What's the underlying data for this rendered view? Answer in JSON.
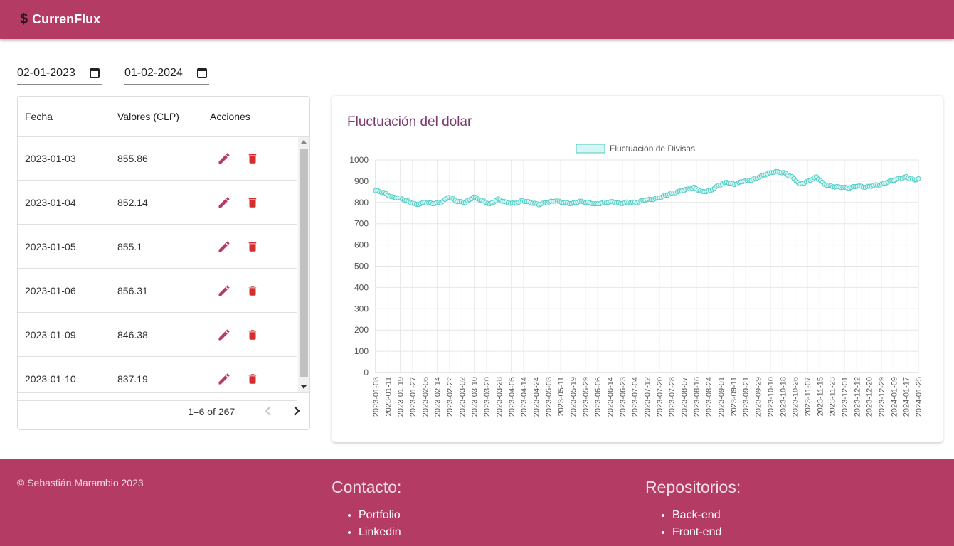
{
  "app": {
    "title": "CurrenFlux",
    "logo_icon": "dollar-icon"
  },
  "filters": {
    "start_date": "02-01-2023",
    "end_date": "01-02-2024"
  },
  "table": {
    "headers": {
      "date": "Fecha",
      "value": "Valores (CLP)",
      "actions": "Acciones"
    },
    "rows": [
      {
        "date": "2023-01-03",
        "value": "855.86"
      },
      {
        "date": "2023-01-04",
        "value": "852.14"
      },
      {
        "date": "2023-01-05",
        "value": "855.1"
      },
      {
        "date": "2023-01-06",
        "value": "856.31"
      },
      {
        "date": "2023-01-09",
        "value": "846.38"
      },
      {
        "date": "2023-01-10",
        "value": "837.19"
      }
    ],
    "pagination": {
      "range": "1–6 of 267"
    }
  },
  "colors": {
    "primary": "#b43c64",
    "edit": "#b43c64",
    "delete": "#d32f2f",
    "series_line": "#4ecdc4",
    "series_fill": "#d7f3f2",
    "chart_title": "#7b3a70"
  },
  "chart_data": {
    "type": "line",
    "title": "Fluctuación del dolar",
    "legend": "Fluctuación de Divisas",
    "legend_position": "top",
    "ylim": [
      0,
      1000
    ],
    "yticks": [
      0,
      100,
      200,
      300,
      400,
      500,
      600,
      700,
      800,
      900,
      1000
    ],
    "grid": true,
    "x_tick_labels": [
      "2023-01-03",
      "2023-01-11",
      "2023-01-19",
      "2023-01-27",
      "2023-02-06",
      "2023-02-14",
      "2023-02-22",
      "2023-03-02",
      "2023-03-10",
      "2023-03-20",
      "2023-03-28",
      "2023-04-05",
      "2023-04-14",
      "2023-04-24",
      "2023-05-03",
      "2023-05-11",
      "2023-05-19",
      "2023-05-29",
      "2023-06-06",
      "2023-06-14",
      "2023-06-23",
      "2023-07-04",
      "2023-07-12",
      "2023-07-20",
      "2023-07-28",
      "2023-08-07",
      "2023-08-16",
      "2023-08-24",
      "2023-09-01",
      "2023-09-11",
      "2023-09-21",
      "2023-09-29",
      "2023-10-10",
      "2023-10-18",
      "2023-10-26",
      "2023-11-07",
      "2023-11-15",
      "2023-11-23",
      "2023-12-01",
      "2023-12-12",
      "2023-12-20",
      "2023-12-29",
      "2024-01-09",
      "2024-01-17",
      "2024-01-25"
    ],
    "anchors": [
      [
        0,
        856
      ],
      [
        4,
        846
      ],
      [
        8,
        825
      ],
      [
        12,
        820
      ],
      [
        16,
        805
      ],
      [
        20,
        790
      ],
      [
        24,
        800
      ],
      [
        28,
        795
      ],
      [
        32,
        800
      ],
      [
        36,
        825
      ],
      [
        40,
        805
      ],
      [
        44,
        800
      ],
      [
        48,
        825
      ],
      [
        52,
        810
      ],
      [
        56,
        792
      ],
      [
        60,
        815
      ],
      [
        64,
        800
      ],
      [
        68,
        795
      ],
      [
        72,
        808
      ],
      [
        76,
        800
      ],
      [
        80,
        790
      ],
      [
        84,
        800
      ],
      [
        88,
        808
      ],
      [
        92,
        800
      ],
      [
        96,
        795
      ],
      [
        100,
        805
      ],
      [
        104,
        800
      ],
      [
        108,
        792
      ],
      [
        112,
        800
      ],
      [
        116,
        803
      ],
      [
        120,
        795
      ],
      [
        124,
        802
      ],
      [
        128,
        800
      ],
      [
        132,
        812
      ],
      [
        136,
        815
      ],
      [
        140,
        825
      ],
      [
        144,
        840
      ],
      [
        148,
        850
      ],
      [
        152,
        860
      ],
      [
        156,
        870
      ],
      [
        160,
        850
      ],
      [
        164,
        855
      ],
      [
        168,
        880
      ],
      [
        172,
        895
      ],
      [
        176,
        885
      ],
      [
        180,
        900
      ],
      [
        184,
        905
      ],
      [
        188,
        920
      ],
      [
        192,
        935
      ],
      [
        196,
        945
      ],
      [
        200,
        940
      ],
      [
        204,
        920
      ],
      [
        208,
        885
      ],
      [
        212,
        900
      ],
      [
        216,
        920
      ],
      [
        220,
        885
      ],
      [
        224,
        875
      ],
      [
        228,
        872
      ],
      [
        232,
        868
      ],
      [
        236,
        878
      ],
      [
        240,
        872
      ],
      [
        244,
        880
      ],
      [
        248,
        885
      ],
      [
        252,
        900
      ],
      [
        256,
        910
      ],
      [
        260,
        920
      ],
      [
        264,
        905
      ],
      [
        266,
        912
      ]
    ],
    "count": 267
  },
  "footer": {
    "copyright": "© Sebastián Marambio 2023",
    "contact_title": "Contacto:",
    "contact_links": [
      "Portfolio",
      "Linkedin"
    ],
    "repos_title": "Repositorios:",
    "repo_links": [
      "Back-end",
      "Front-end"
    ]
  }
}
